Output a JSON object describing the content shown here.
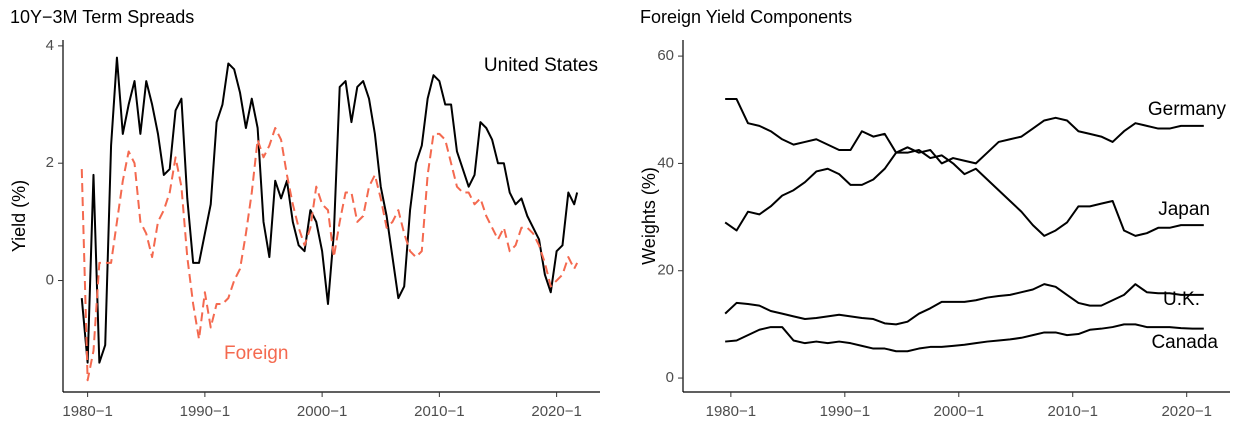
{
  "chart_data": [
    {
      "type": "line",
      "title": "10Y−3M Term Spreads",
      "ylabel": "Yield (%)",
      "x": [
        1979.5,
        1980,
        1980.5,
        1981,
        1981.5,
        1982,
        1982.5,
        1983,
        1983.5,
        1984,
        1984.5,
        1985,
        1985.5,
        1986,
        1986.5,
        1987,
        1987.5,
        1988,
        1988.5,
        1989,
        1989.5,
        1990,
        1990.5,
        1991,
        1991.5,
        1992,
        1992.5,
        1993,
        1993.5,
        1994,
        1994.5,
        1995,
        1995.5,
        1996,
        1996.5,
        1997,
        1997.5,
        1998,
        1998.5,
        1999,
        1999.5,
        2000,
        2000.5,
        2001,
        2001.5,
        2002,
        2002.5,
        2003,
        2003.5,
        2004,
        2004.5,
        2005,
        2005.5,
        2006,
        2006.5,
        2007,
        2007.5,
        2008,
        2008.5,
        2009,
        2009.5,
        2010,
        2010.5,
        2011,
        2011.5,
        2012,
        2012.5,
        2013,
        2013.5,
        2014,
        2014.5,
        2015,
        2015.5,
        2016,
        2016.5,
        2017,
        2017.5,
        2018,
        2018.5,
        2019,
        2019.5,
        2020,
        2020.5,
        2021,
        2021.5,
        2021.75
      ],
      "series": [
        {
          "name": "United States",
          "color": "#000000",
          "dashed": false,
          "values": [
            -0.3,
            -1.4,
            1.8,
            -1.4,
            -1.1,
            2.3,
            3.8,
            2.5,
            3.0,
            3.4,
            2.5,
            3.4,
            3.0,
            2.5,
            1.8,
            1.9,
            2.9,
            3.1,
            1.4,
            0.3,
            0.3,
            0.8,
            1.3,
            2.7,
            3.0,
            3.7,
            3.6,
            3.2,
            2.6,
            3.1,
            2.6,
            1.0,
            0.4,
            1.7,
            1.4,
            1.7,
            1.0,
            0.6,
            0.5,
            1.2,
            1.0,
            0.5,
            -0.4,
            0.8,
            3.3,
            3.4,
            2.7,
            3.3,
            3.4,
            3.1,
            2.5,
            1.6,
            1.1,
            0.4,
            -0.3,
            -0.1,
            1.2,
            2.0,
            2.3,
            3.1,
            3.5,
            3.4,
            3.0,
            3.0,
            2.2,
            1.9,
            1.6,
            1.8,
            2.7,
            2.6,
            2.4,
            2.0,
            2.0,
            1.5,
            1.3,
            1.4,
            1.1,
            0.9,
            0.7,
            0.1,
            -0.2,
            0.5,
            0.6,
            1.5,
            1.3,
            1.5
          ]
        },
        {
          "name": "Foreign",
          "color": "#f4694f",
          "dashed": true,
          "values": [
            1.9,
            -1.7,
            -1.2,
            0.3,
            0.3,
            0.3,
            1.0,
            1.7,
            2.2,
            2.0,
            1.0,
            0.8,
            0.4,
            1.0,
            1.2,
            1.5,
            2.1,
            1.6,
            0.4,
            -0.4,
            -1.0,
            -0.2,
            -0.8,
            -0.4,
            -0.4,
            -0.3,
            0.0,
            0.2,
            0.8,
            1.5,
            2.4,
            2.1,
            2.3,
            2.6,
            2.4,
            1.8,
            1.3,
            0.9,
            0.6,
            0.9,
            1.6,
            1.3,
            1.2,
            0.4,
            1.0,
            1.5,
            1.5,
            1.0,
            1.1,
            1.6,
            1.8,
            1.4,
            0.9,
            1.0,
            1.2,
            0.8,
            0.5,
            0.4,
            0.5,
            1.8,
            2.5,
            2.5,
            2.4,
            2.0,
            1.6,
            1.5,
            1.5,
            1.3,
            1.4,
            1.1,
            0.9,
            0.7,
            0.9,
            0.5,
            0.6,
            0.9,
            0.9,
            0.8,
            0.6,
            0.3,
            -0.1,
            0.0,
            0.1,
            0.4,
            0.2,
            0.3
          ]
        }
      ],
      "xlim": [
        1977.9,
        2023.7
      ],
      "ylim": [
        -1.9,
        4.1
      ],
      "xticks": [
        {
          "value": 1980,
          "label": "1980−1"
        },
        {
          "value": 1990,
          "label": "1990−1"
        },
        {
          "value": 2000,
          "label": "2000−1"
        },
        {
          "value": 2010,
          "label": "2010−1"
        },
        {
          "value": 2020,
          "label": "2020−1"
        }
      ],
      "yticks": [
        0,
        2,
        4
      ],
      "grid": false
    },
    {
      "type": "line",
      "title": "Foreign Yield Components",
      "ylabel": "Weights (%)",
      "x": [
        1979.5,
        1980.5,
        1981.5,
        1982.5,
        1983.5,
        1984.5,
        1985.5,
        1986.5,
        1987.5,
        1988.5,
        1989.5,
        1990.5,
        1991.5,
        1992.5,
        1993.5,
        1994.5,
        1995.5,
        1996.5,
        1997.5,
        1998.5,
        1999.5,
        2000.5,
        2001.5,
        2002.5,
        2003.5,
        2004.5,
        2005.5,
        2006.5,
        2007.5,
        2008.5,
        2009.5,
        2010.5,
        2011.5,
        2012.5,
        2013.5,
        2014.5,
        2015.5,
        2016.5,
        2017.5,
        2018.5,
        2019.5,
        2020.5,
        2021.5
      ],
      "series": [
        {
          "name": "Germany",
          "color": "#000000",
          "dashed": false,
          "values": [
            52,
            52,
            47.5,
            47,
            46,
            44.5,
            43.5,
            44,
            44.5,
            43.5,
            42.5,
            42.5,
            46,
            45,
            45.5,
            42,
            43,
            42,
            42.5,
            40,
            41,
            40.5,
            40,
            42,
            44,
            44.5,
            45,
            46.5,
            48,
            48.5,
            48,
            46,
            45.5,
            45,
            44,
            46,
            47.5,
            47,
            46.5,
            46.5,
            47,
            47,
            47
          ]
        },
        {
          "name": "Japan",
          "color": "#000000",
          "dashed": false,
          "values": [
            29,
            27.5,
            31,
            30.5,
            32,
            34,
            35,
            36.5,
            38.5,
            39,
            38,
            36,
            36,
            37,
            39,
            42,
            42,
            42.5,
            41,
            41.5,
            40,
            38,
            39,
            37,
            35,
            33,
            31,
            28.5,
            26.5,
            27.5,
            29,
            32,
            32,
            32.5,
            33,
            27.5,
            26.5,
            27,
            28,
            28,
            28.5,
            28.5,
            28.5
          ]
        },
        {
          "name": "U.K.",
          "color": "#000000",
          "dashed": false,
          "values": [
            12,
            14,
            13.8,
            13.5,
            12.5,
            12,
            11.5,
            11,
            11.2,
            11.5,
            11.8,
            11.5,
            11.2,
            11,
            10.2,
            10,
            10.5,
            12,
            13,
            14.2,
            14.2,
            14.2,
            14.5,
            15,
            15.3,
            15.5,
            16,
            16.5,
            17.5,
            17,
            15.5,
            14,
            13.5,
            13.5,
            14.5,
            15.5,
            17.5,
            16,
            15.8,
            15.8,
            15.5,
            15.5,
            15.5
          ]
        },
        {
          "name": "Canada",
          "color": "#000000",
          "dashed": false,
          "values": [
            6.8,
            7,
            8,
            9,
            9.5,
            9.5,
            7,
            6.5,
            6.8,
            6.5,
            6.8,
            6.5,
            6,
            5.5,
            5.5,
            5,
            5,
            5.5,
            5.8,
            5.8,
            6,
            6.2,
            6.5,
            6.8,
            7,
            7.2,
            7.5,
            8,
            8.5,
            8.5,
            8,
            8.2,
            9,
            9.2,
            9.5,
            10,
            10,
            9.5,
            9.5,
            9.5,
            9.3,
            9.2,
            9.2
          ]
        }
      ],
      "xlim": [
        1975.8,
        2023.8
      ],
      "ylim": [
        -2.6,
        63
      ],
      "xticks": [
        {
          "value": 1980,
          "label": "1980−1"
        },
        {
          "value": 1990,
          "label": "1990−1"
        },
        {
          "value": 2000,
          "label": "2000−1"
        },
        {
          "value": 2010,
          "label": "2010−1"
        },
        {
          "value": 2020,
          "label": "2020−1"
        }
      ],
      "yticks": [
        0,
        20,
        40,
        60
      ],
      "grid": false
    }
  ]
}
